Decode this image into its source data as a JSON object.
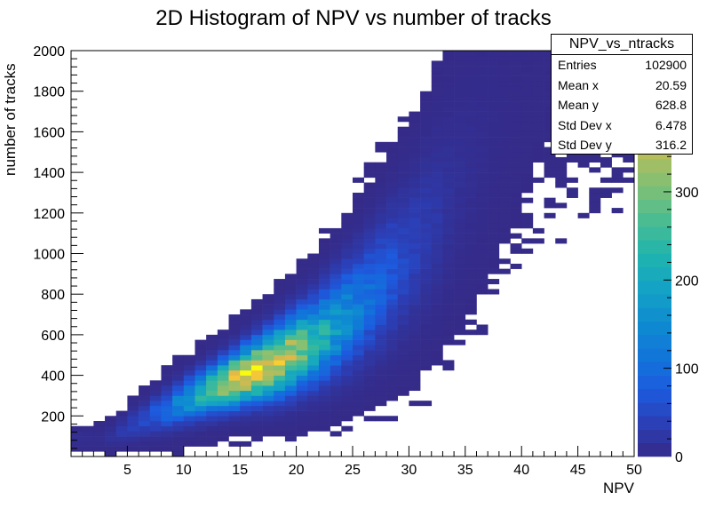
{
  "chart_data": {
    "type": "heatmap",
    "title": "2D Histogram of NPV vs number of tracks",
    "xlabel": "NPV",
    "ylabel": "number of tracks",
    "xlim": [
      0,
      50
    ],
    "ylim": [
      0,
      2000
    ],
    "x_ticks": [
      5,
      10,
      15,
      20,
      25,
      30,
      35,
      40,
      45,
      50
    ],
    "y_ticks": [
      200,
      400,
      600,
      800,
      1000,
      1200,
      1400,
      1600,
      1800,
      2000
    ],
    "bins": {
      "x_count": 50,
      "x_range": [
        0,
        50
      ],
      "y_count": 80,
      "y_range": [
        0,
        2000
      ]
    },
    "z_scale": {
      "min": 0,
      "max": 460,
      "ticks": [
        0,
        100,
        200,
        300
      ],
      "colormap": [
        "#352a87",
        "#2b3fb7",
        "#1c5ce0",
        "#1076d8",
        "#0f8dd1",
        "#14a3c4",
        "#21b4ad",
        "#4bbc91",
        "#7fc075",
        "#b6bd5b",
        "#e2b848",
        "#f9cb34",
        "#f9fb0e"
      ]
    },
    "density_ridge_summary": [
      {
        "npv": 3,
        "tracks_peak": 90,
        "tracks_sigma": 30,
        "peak_count": 8
      },
      {
        "npv": 8,
        "tracks_peak": 220,
        "tracks_sigma": 60,
        "peak_count": 80
      },
      {
        "npv": 12,
        "tracks_peak": 320,
        "tracks_sigma": 70,
        "peak_count": 240
      },
      {
        "npv": 15,
        "tracks_peak": 390,
        "tracks_sigma": 80,
        "peak_count": 440
      },
      {
        "npv": 18,
        "tracks_peak": 460,
        "tracks_sigma": 100,
        "peak_count": 400
      },
      {
        "npv": 22,
        "tracks_peak": 580,
        "tracks_sigma": 130,
        "peak_count": 230
      },
      {
        "npv": 26,
        "tracks_peak": 760,
        "tracks_sigma": 170,
        "peak_count": 110
      },
      {
        "npv": 30,
        "tracks_peak": 990,
        "tracks_sigma": 220,
        "peak_count": 45
      },
      {
        "npv": 34,
        "tracks_peak": 1300,
        "tracks_sigma": 290,
        "peak_count": 12
      },
      {
        "npv": 38,
        "tracks_peak": 1650,
        "tracks_sigma": 350,
        "peak_count": 3
      },
      {
        "npv": 42,
        "tracks_peak": 1950,
        "tracks_sigma": 400,
        "peak_count": 1
      }
    ]
  },
  "stats": {
    "title": "NPV_vs_ntracks",
    "rows": [
      {
        "label": "Entries",
        "value": "102900"
      },
      {
        "label": "Mean x",
        "value": "20.59"
      },
      {
        "label": "Mean y",
        "value": "628.8"
      },
      {
        "label": "Std Dev x",
        "value": "6.478"
      },
      {
        "label": "Std Dev y",
        "value": "316.2"
      }
    ]
  }
}
